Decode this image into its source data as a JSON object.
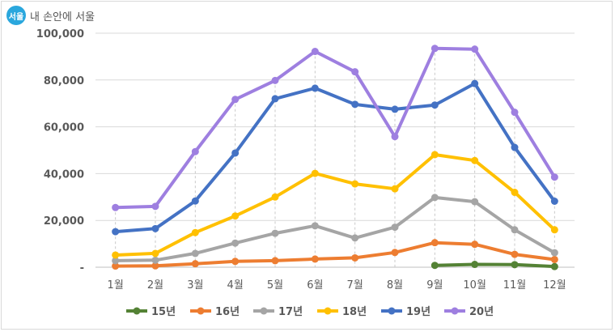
{
  "brand": {
    "logo_text": "서울",
    "text": "내 손안에 서울",
    "logo_color": "#2aa7dd"
  },
  "chart_data": {
    "type": "line",
    "categories": [
      "1월",
      "2월",
      "3월",
      "4월",
      "5월",
      "6월",
      "7월",
      "8월",
      "9월",
      "10월",
      "11월",
      "12월"
    ],
    "ylim": [
      0,
      100000
    ],
    "yticks": [
      {
        "value": 0,
        "label": "-"
      },
      {
        "value": 20000,
        "label": "20,000"
      },
      {
        "value": 40000,
        "label": "40,000"
      },
      {
        "value": 60000,
        "label": "60,000"
      },
      {
        "value": 80000,
        "label": "80,000"
      },
      {
        "value": 100000,
        "label": "100,000"
      }
    ],
    "grid": true,
    "legend_position": "bottom",
    "series": [
      {
        "name": "15년",
        "color": "#548235",
        "values": [
          null,
          null,
          null,
          null,
          null,
          null,
          null,
          null,
          800,
          1200,
          1100,
          300
        ]
      },
      {
        "name": "16년",
        "color": "#ed7d31",
        "values": [
          500,
          600,
          1500,
          2500,
          2800,
          3500,
          4000,
          6300,
          10500,
          9800,
          5500,
          3300
        ]
      },
      {
        "name": "17년",
        "color": "#a5a5a5",
        "values": [
          2800,
          3000,
          5900,
          10300,
          14500,
          17700,
          12500,
          17100,
          29800,
          28000,
          16000,
          6200
        ]
      },
      {
        "name": "18년",
        "color": "#ffc000",
        "values": [
          5200,
          5900,
          14800,
          21900,
          30000,
          40100,
          35600,
          33500,
          48100,
          45600,
          32000,
          16000
        ]
      },
      {
        "name": "19년",
        "color": "#4472c4",
        "values": [
          15200,
          16500,
          28300,
          48800,
          72000,
          76500,
          69600,
          67500,
          69300,
          78500,
          51200,
          28200
        ]
      },
      {
        "name": "20년",
        "color": "#9e7fe0",
        "values": [
          25500,
          26000,
          49400,
          71700,
          79800,
          92200,
          83500,
          55800,
          93500,
          93200,
          66200,
          38500
        ]
      }
    ]
  }
}
